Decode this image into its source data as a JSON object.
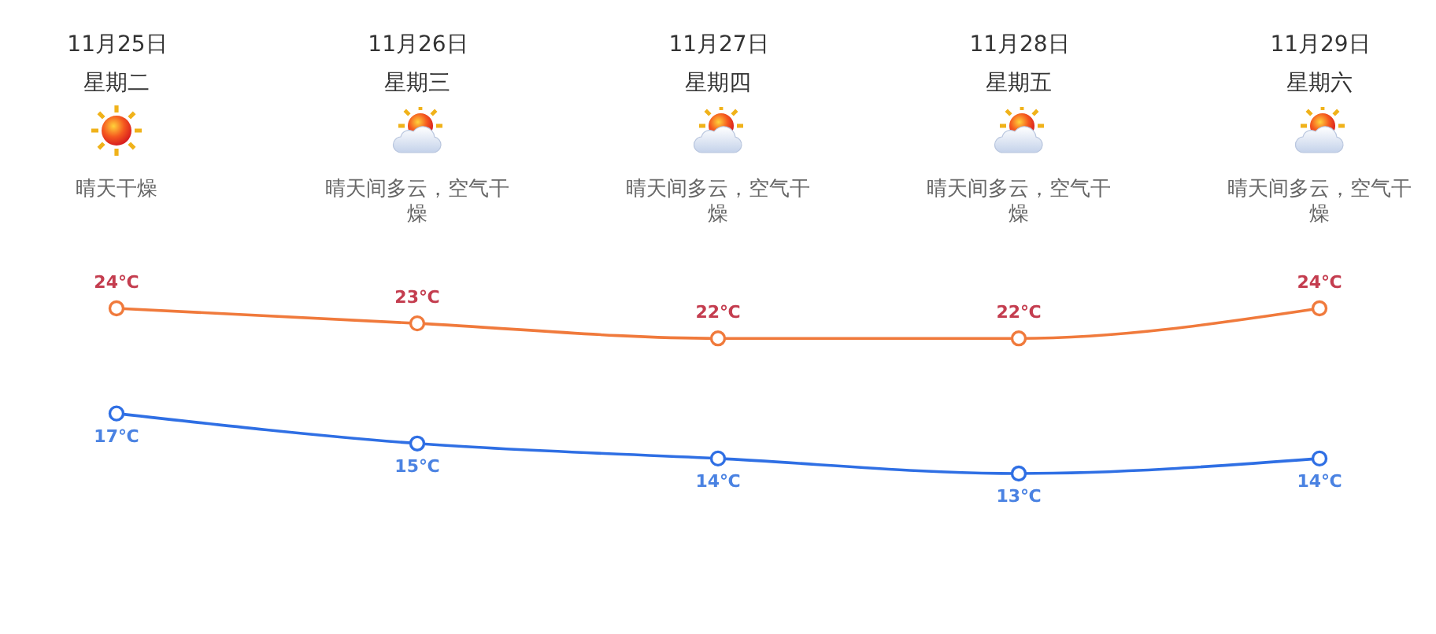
{
  "chart_data": {
    "type": "line",
    "categories": [
      "11月25日",
      "11月26日",
      "11月27日",
      "11月28日",
      "11月29日"
    ],
    "series": [
      {
        "color": "#f07a3c",
        "values": [
          24,
          23,
          22,
          22,
          24
        ],
        "value_labels": [
          "24℃",
          "23℃",
          "22℃",
          "22℃",
          "24℃"
        ]
      },
      {
        "color": "#2f6fe4",
        "values": [
          17,
          15,
          14,
          13,
          14
        ],
        "value_labels": [
          "17℃",
          "15℃",
          "14℃",
          "13℃",
          "14℃"
        ]
      }
    ],
    "annotations": [
      "星期二",
      "星期三",
      "星期四",
      "星期五",
      "星期六",
      "晴天干燥",
      "晴天间多云，空气干燥",
      "晴天间多云，空气干燥",
      "晴天间多云，空气干燥",
      "晴天间多云，空气干燥"
    ],
    "marker": "circle"
  }
}
